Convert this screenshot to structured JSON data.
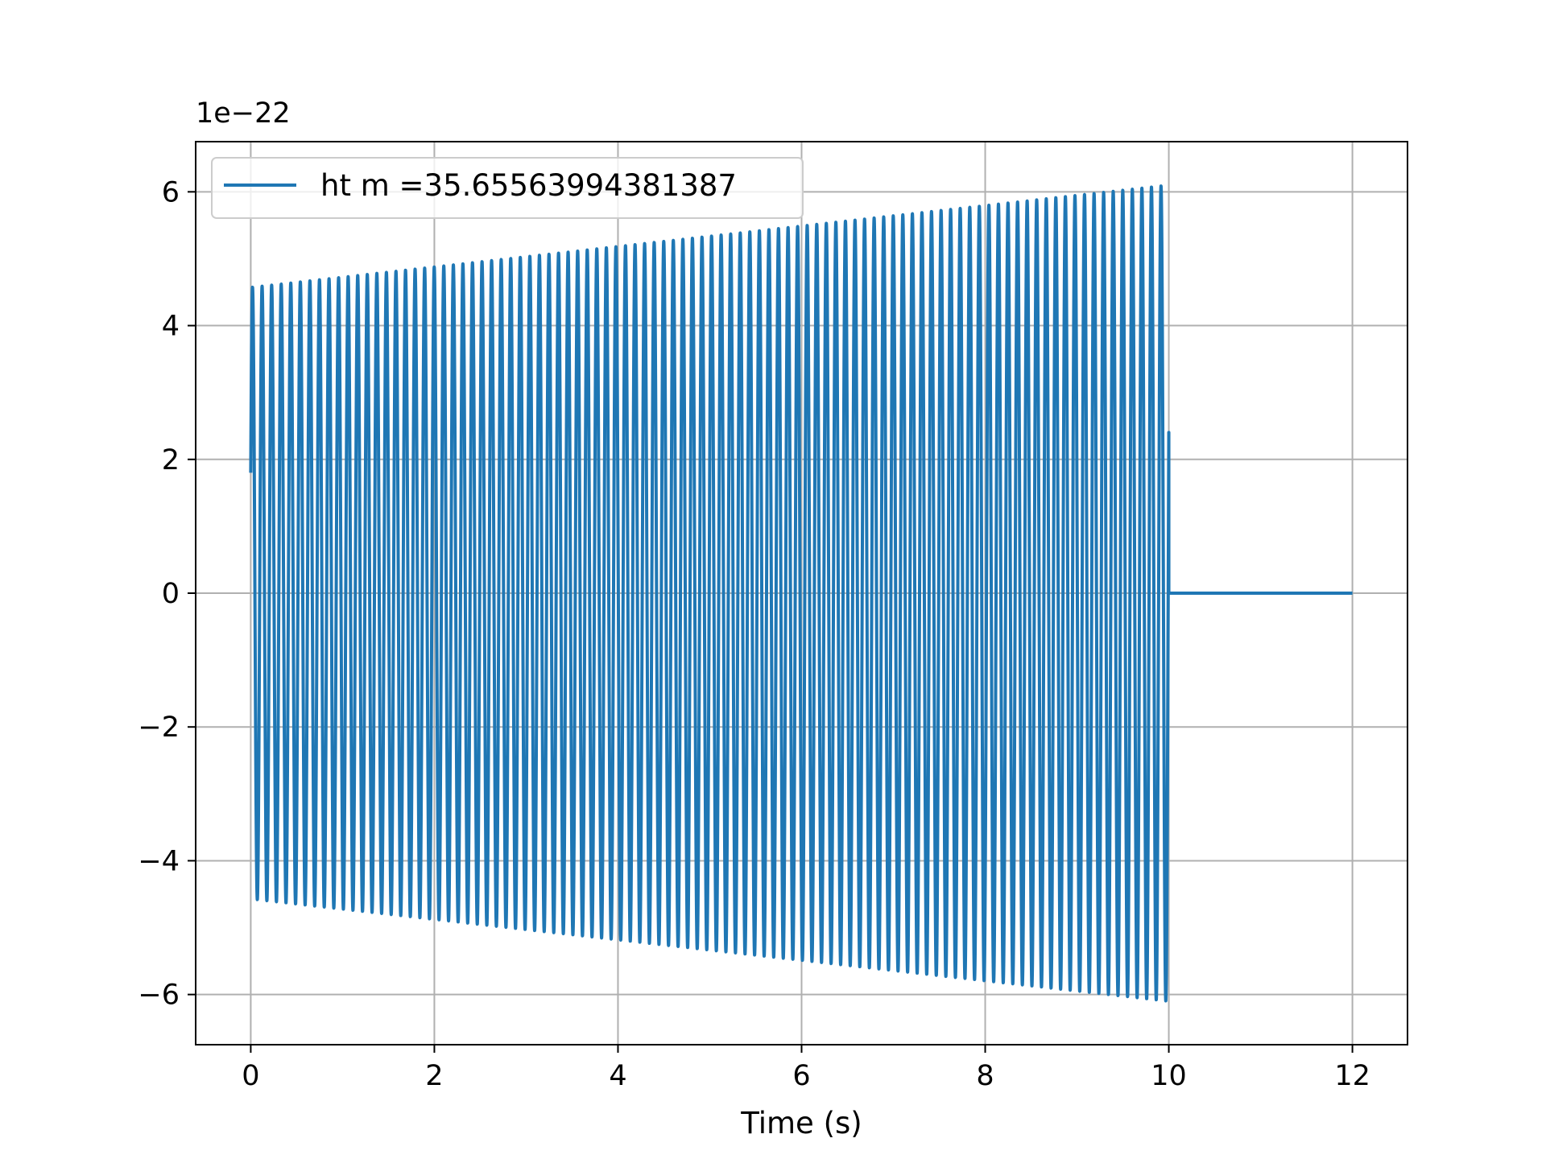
{
  "chart_data": {
    "type": "line",
    "title": "",
    "xlabel": "Time (s)",
    "ylabel": "",
    "offset_text": "1e−22",
    "xlim": [
      -0.6,
      12.6
    ],
    "ylim": [
      -6.75e-22,
      6.75e-22
    ],
    "xticks": [
      0,
      2,
      4,
      6,
      8,
      10,
      12
    ],
    "xtick_labels": [
      "0",
      "2",
      "4",
      "6",
      "8",
      "10",
      "12"
    ],
    "yticks": [
      -6e-22,
      -4e-22,
      -2e-22,
      0,
      2e-22,
      4e-22,
      6e-22
    ],
    "ytick_labels": [
      "−6",
      "−4",
      "−2",
      "0",
      "2",
      "4",
      "6"
    ],
    "grid": true,
    "legend_position": "upper-left",
    "series": [
      {
        "name": "ht m =35.65563994381387",
        "color": "#1f77b4",
        "signal_start": 0,
        "signal_end": 10,
        "series_end": 12,
        "amplitude_start": 4.57e-22,
        "amplitude_end": 6.1e-22,
        "initial_value": 1.8e-22,
        "oscillations": 96
      }
    ]
  }
}
